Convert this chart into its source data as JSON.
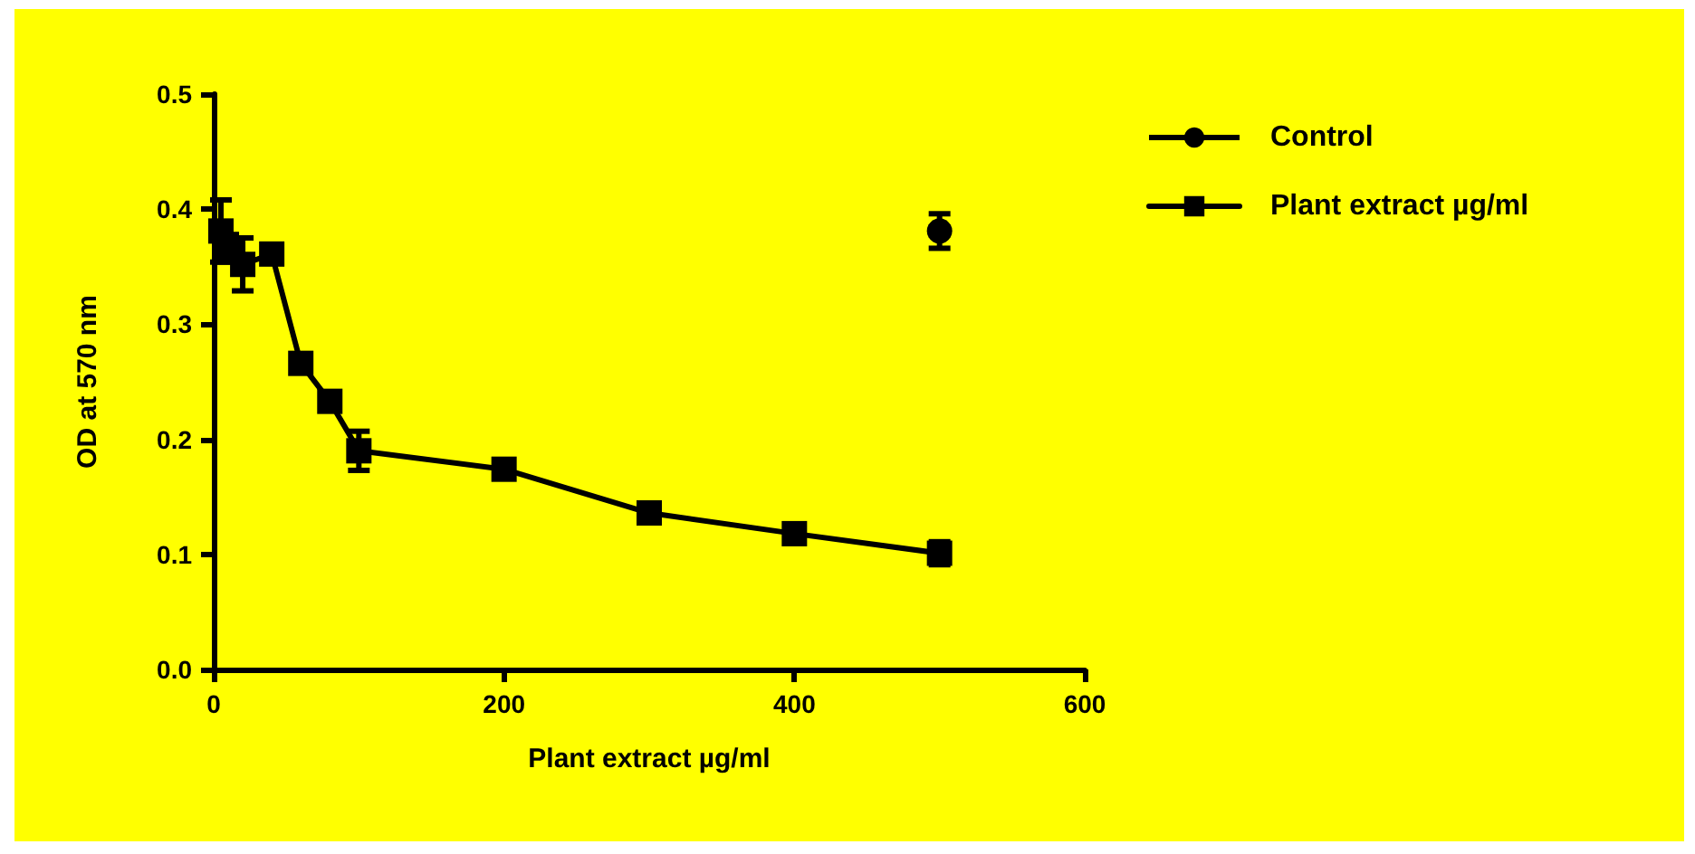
{
  "chart_data": {
    "type": "line",
    "xlabel": "Plant extract µg/ml",
    "ylabel": "OD at 570 nm",
    "xlim": [
      0,
      600
    ],
    "xticks": [
      0,
      200,
      400,
      600
    ],
    "ylim": [
      0,
      0.5
    ],
    "yticks": [
      {
        "value": 0,
        "label": "0.0"
      },
      0.1,
      0.2,
      0.3,
      0.4,
      0.5
    ],
    "grid": false,
    "legend": "top right",
    "line_style": "solid",
    "series": [
      {
        "name": "Control",
        "color": "#000000",
        "type": "scatter",
        "marker": "circle",
        "x": [
          500
        ],
        "values": [
          0.381
        ],
        "errors": [
          0.015
        ]
      },
      {
        "name": "Plant extract µg/ml",
        "color": "#000000",
        "marker": "square",
        "x": [
          5,
          10,
          20,
          40,
          60,
          80,
          100,
          200,
          300,
          400,
          500
        ],
        "values": [
          0.381,
          0.366,
          0.352,
          0.361,
          0.266,
          0.233,
          0.19,
          0.174,
          0.136,
          0.118,
          0.101
        ],
        "errors": [
          0.027,
          0.012,
          0.023,
          null,
          null,
          null,
          0.017,
          0.008,
          null,
          0.005,
          0.01
        ]
      }
    ]
  }
}
